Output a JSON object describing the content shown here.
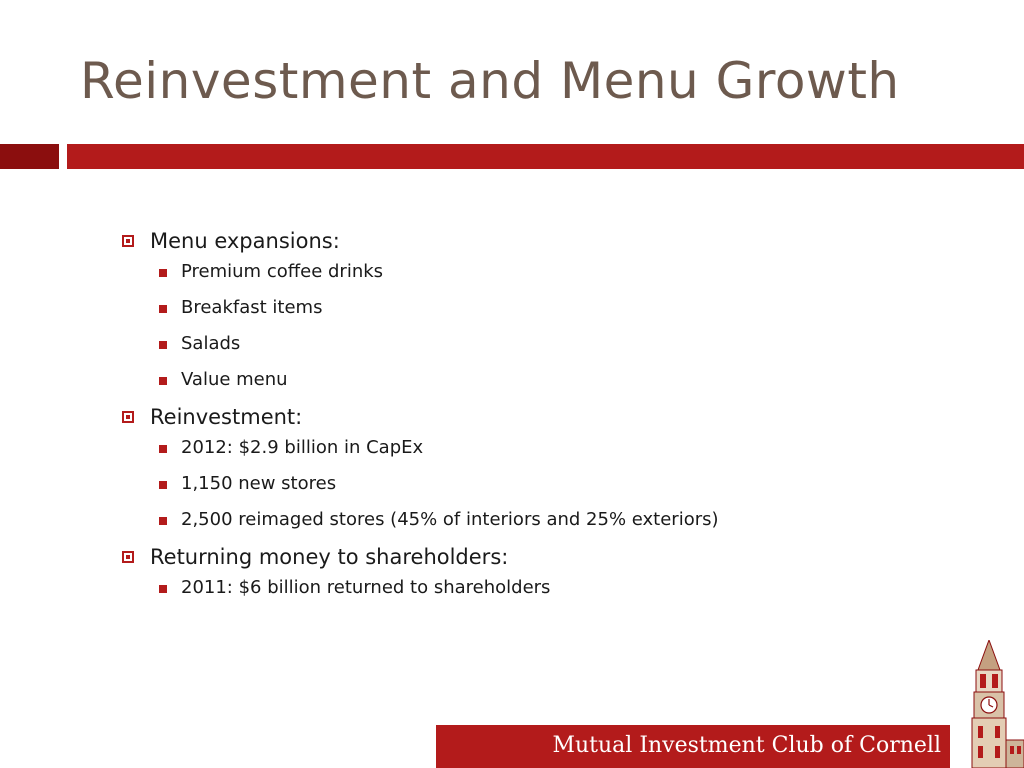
{
  "slide": {
    "title": "Reinvestment and Menu Growth",
    "bullets": [
      {
        "text": "Menu expansions:",
        "items": [
          "Premium coffee drinks",
          "Breakfast items",
          "Salads",
          "Value menu"
        ]
      },
      {
        "text": "Reinvestment:",
        "items": [
          "2012: $2.9 billion in CapEx",
          "1,150 new stores",
          "2,500 reimaged stores (45% of interiors and 25% exteriors)"
        ]
      },
      {
        "text": "Returning money to shareholders:",
        "items": [
          "2011: $6 billion returned to shareholders"
        ]
      }
    ]
  },
  "footer": {
    "text": "Mutual Investment Club of Cornell"
  },
  "colors": {
    "title": "#6d5a4e",
    "accent": "#b31b1b",
    "accent_dark": "#8b0e0e",
    "body_text": "#1a1a1a"
  },
  "icons": {
    "level1_bullet": "hollow-square-bullet-icon",
    "level2_bullet": "filled-square-bullet-icon",
    "footer_image": "clock-tower-icon"
  }
}
